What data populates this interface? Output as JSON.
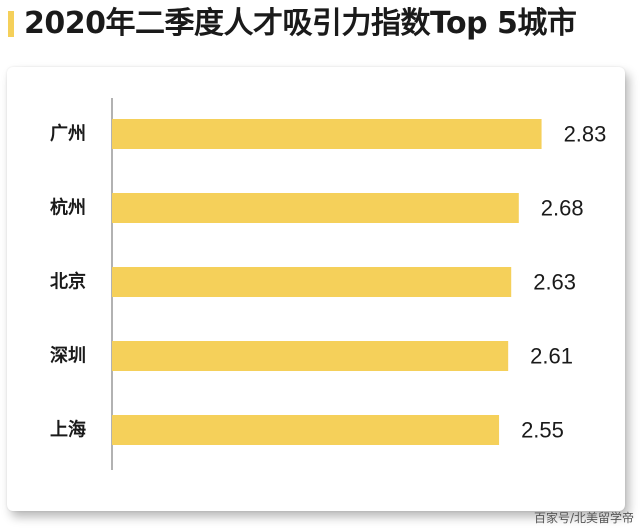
{
  "title": "2020年二季度人才吸引力指数Top 5城市",
  "colors": {
    "accent": "#f5d05a",
    "bar": "#f5d05a",
    "text": "#1a1a1a",
    "axis": "#666666"
  },
  "chart_data": {
    "type": "bar",
    "orientation": "horizontal",
    "categories": [
      "广州",
      "杭州",
      "北京",
      "深圳",
      "上海"
    ],
    "values": [
      2.83,
      2.68,
      2.63,
      2.61,
      2.55
    ],
    "value_labels": [
      "2.83",
      "2.68",
      "2.63",
      "2.61",
      "2.55"
    ],
    "title": "2020年二季度人才吸引力指数Top 5城市",
    "xlabel": "",
    "ylabel": "",
    "xlim": [
      0,
      3.07
    ],
    "grid": false,
    "legend": "none"
  },
  "watermark": "百家号/北美留学帝"
}
